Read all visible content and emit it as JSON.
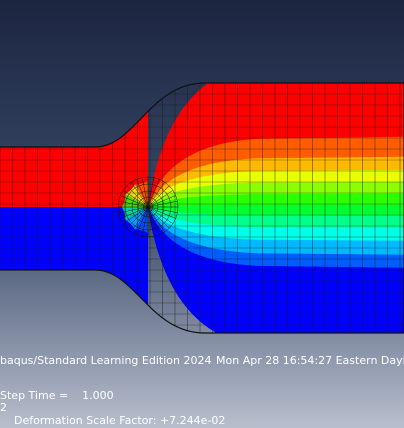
{
  "viewport": {
    "info_line": "baqus/Standard Learning Edition 2024",
    "timestamp": "Mon Apr 28 16:54:27 Eastern Dayli",
    "step_time": "Step Time =    1.000",
    "frame": "2",
    "scale_factor": "Deformation Scale Factor: +7.244e-02"
  }
}
